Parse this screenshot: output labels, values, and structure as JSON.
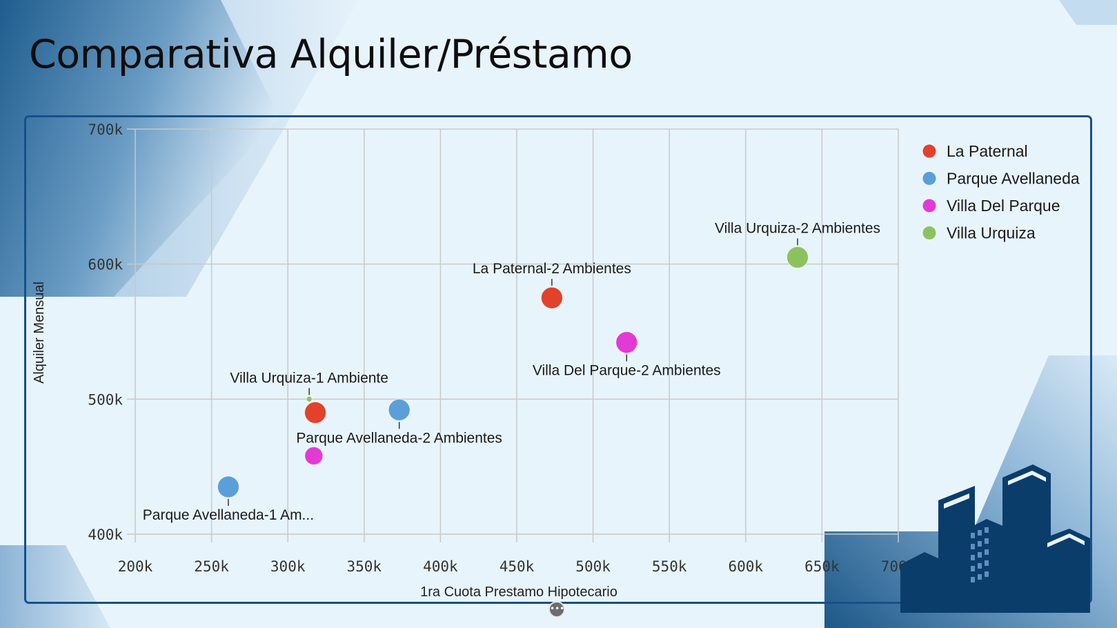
{
  "page": {
    "title": "Comparativa Alquiler/Préstamo",
    "menu_icon": "more-horizontal-icon",
    "decoration_icon": "buildings-icon"
  },
  "colors": {
    "frame": "#15508a",
    "La Paternal": "#e2412a",
    "Parque Avellaneda": "#5a9fd8",
    "Villa Del Parque": "#e23ad4",
    "Villa Urquiza": "#8cc25e",
    "buildings": "#0b3d6b"
  },
  "chart_data": {
    "type": "scatter",
    "xlabel": "1ra Cuota Prestamo Hipotecario",
    "ylabel": "Alquiler Mensual",
    "xlim": [
      200000,
      700000
    ],
    "ylim": [
      400000,
      700000
    ],
    "x_ticks": [
      200000,
      250000,
      300000,
      350000,
      400000,
      450000,
      500000,
      550000,
      600000,
      650000,
      700000
    ],
    "x_tick_labels": [
      "200k",
      "250k",
      "300k",
      "350k",
      "400k",
      "450k",
      "500k",
      "550k",
      "600k",
      "650k",
      "700k"
    ],
    "y_ticks": [
      400000,
      500000,
      600000,
      700000
    ],
    "y_tick_labels": [
      "400k",
      "500k",
      "600k",
      "700k"
    ],
    "grid": true,
    "legend_position": "right",
    "legend": [
      "La Paternal",
      "Parque Avellaneda",
      "Villa Del Parque",
      "Villa Urquiza"
    ],
    "points": [
      {
        "series": "La Paternal",
        "x": 473000,
        "y": 575000,
        "size": "large",
        "label": "La Paternal-2 Ambientes",
        "label_pos": "above"
      },
      {
        "series": "Villa Urquiza",
        "x": 634000,
        "y": 605000,
        "size": "large",
        "label": "Villa Urquiza-2 Ambientes",
        "label_pos": "above"
      },
      {
        "series": "Villa Del Parque",
        "x": 522000,
        "y": 542000,
        "size": "large",
        "label": "Villa Del Parque-2 Ambientes",
        "label_pos": "below"
      },
      {
        "series": "Villa Urquiza",
        "x": 314000,
        "y": 500000,
        "size": "small",
        "label": "Villa Urquiza-1 Ambiente",
        "label_pos": "above"
      },
      {
        "series": "La Paternal",
        "x": 318000,
        "y": 490000,
        "size": "large",
        "label": "",
        "label_pos": "none"
      },
      {
        "series": "Parque Avellaneda",
        "x": 373000,
        "y": 492000,
        "size": "large",
        "label": "Parque Avellaneda-2 Ambientes",
        "label_pos": "below"
      },
      {
        "series": "Villa Del Parque",
        "x": 317000,
        "y": 458000,
        "size": "medium",
        "label": "",
        "label_pos": "none"
      },
      {
        "series": "Parque Avellaneda",
        "x": 261000,
        "y": 435000,
        "size": "large",
        "label": "Parque Avellaneda-1 Am...",
        "label_pos": "below"
      }
    ]
  }
}
